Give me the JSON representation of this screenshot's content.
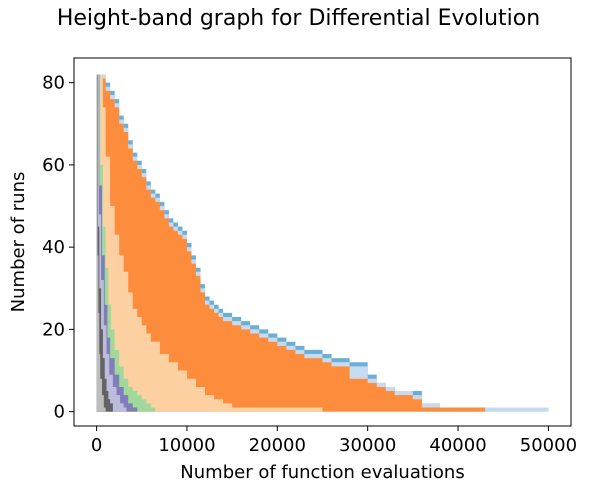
{
  "chart_data": {
    "type": "area",
    "title": "Height-band graph for Differential Evolution",
    "xlabel": "Number of function evaluations",
    "ylabel": "Number of runs",
    "xlim": [
      -2500,
      52500
    ],
    "ylim": [
      -3.5,
      86
    ],
    "xticks": [
      0,
      10000,
      20000,
      30000,
      40000,
      50000
    ],
    "yticks": [
      0,
      20,
      40,
      60,
      80
    ],
    "grid": false,
    "legend": "none",
    "total_runs": 82,
    "bands": [
      {
        "color": "#6baed6",
        "points": [
          [
            0,
            82
          ],
          [
            700,
            82
          ],
          [
            1000,
            80
          ],
          [
            1500,
            78
          ],
          [
            2000,
            76
          ],
          [
            2500,
            72
          ],
          [
            3000,
            70
          ],
          [
            3500,
            66
          ],
          [
            4000,
            63
          ],
          [
            4500,
            61
          ],
          [
            5000,
            59
          ],
          [
            5500,
            56
          ],
          [
            6000,
            54
          ],
          [
            6500,
            53
          ],
          [
            7000,
            51
          ],
          [
            7500,
            49
          ],
          [
            8000,
            47
          ],
          [
            8500,
            46
          ],
          [
            9000,
            45
          ],
          [
            9500,
            44
          ],
          [
            10000,
            41
          ],
          [
            10500,
            38
          ],
          [
            11000,
            35
          ],
          [
            11500,
            31
          ],
          [
            12000,
            28
          ],
          [
            12500,
            27
          ],
          [
            13000,
            26
          ],
          [
            13500,
            25
          ],
          [
            14000,
            24
          ],
          [
            15000,
            23
          ],
          [
            16000,
            22
          ],
          [
            17000,
            21
          ],
          [
            18000,
            20
          ],
          [
            19000,
            19
          ],
          [
            20000,
            18
          ],
          [
            21000,
            17
          ],
          [
            22000,
            16
          ],
          [
            23000,
            15
          ],
          [
            25000,
            14
          ],
          [
            26000,
            13
          ],
          [
            28000,
            12
          ],
          [
            30000,
            9
          ],
          [
            31000,
            7
          ],
          [
            32000,
            6
          ],
          [
            33000,
            5
          ],
          [
            35000,
            5
          ],
          [
            36000,
            2
          ],
          [
            38000,
            1
          ],
          [
            43000,
            1
          ],
          [
            50000,
            0
          ]
        ]
      },
      {
        "color": "#c6dbef",
        "points": [
          [
            0,
            82
          ],
          [
            700,
            82
          ],
          [
            1000,
            79
          ],
          [
            1500,
            77
          ],
          [
            2000,
            75
          ],
          [
            2500,
            71
          ],
          [
            3000,
            69
          ],
          [
            3500,
            65
          ],
          [
            4000,
            62
          ],
          [
            4500,
            60
          ],
          [
            5000,
            58
          ],
          [
            5500,
            55
          ],
          [
            6000,
            53
          ],
          [
            6500,
            52
          ],
          [
            7000,
            50
          ],
          [
            7500,
            48
          ],
          [
            8000,
            46
          ],
          [
            8500,
            45
          ],
          [
            9000,
            44
          ],
          [
            9500,
            43
          ],
          [
            10000,
            40
          ],
          [
            10500,
            37
          ],
          [
            11000,
            34
          ],
          [
            11500,
            30
          ],
          [
            12000,
            27
          ],
          [
            12500,
            26
          ],
          [
            13000,
            25
          ],
          [
            13500,
            24
          ],
          [
            14000,
            23
          ],
          [
            15000,
            22
          ],
          [
            16000,
            21
          ],
          [
            17000,
            20
          ],
          [
            18000,
            19
          ],
          [
            19000,
            18
          ],
          [
            20000,
            17
          ],
          [
            21000,
            16
          ],
          [
            22000,
            15
          ],
          [
            23000,
            14
          ],
          [
            25000,
            13
          ],
          [
            26000,
            12
          ],
          [
            28000,
            11
          ],
          [
            30000,
            8
          ],
          [
            31000,
            7
          ],
          [
            32000,
            6
          ],
          [
            33000,
            5
          ],
          [
            35000,
            4
          ],
          [
            36000,
            2
          ],
          [
            38000,
            1
          ],
          [
            43000,
            1
          ],
          [
            50000,
            0
          ]
        ]
      },
      {
        "color": "#fd8d3c",
        "points": [
          [
            0,
            82
          ],
          [
            700,
            81
          ],
          [
            1000,
            78
          ],
          [
            1500,
            76
          ],
          [
            2000,
            74
          ],
          [
            2500,
            70
          ],
          [
            3000,
            68
          ],
          [
            3500,
            64
          ],
          [
            4000,
            61
          ],
          [
            4500,
            59
          ],
          [
            5000,
            57
          ],
          [
            5500,
            54
          ],
          [
            6000,
            52
          ],
          [
            6500,
            51
          ],
          [
            7000,
            49
          ],
          [
            7500,
            47
          ],
          [
            8000,
            45
          ],
          [
            8500,
            44
          ],
          [
            9000,
            43
          ],
          [
            9500,
            42
          ],
          [
            10000,
            39
          ],
          [
            10500,
            36
          ],
          [
            11000,
            33
          ],
          [
            11500,
            29
          ],
          [
            12000,
            26
          ],
          [
            12500,
            25
          ],
          [
            13000,
            24
          ],
          [
            13500,
            23
          ],
          [
            14000,
            22
          ],
          [
            15000,
            21
          ],
          [
            16000,
            20
          ],
          [
            17000,
            19
          ],
          [
            18000,
            18
          ],
          [
            19000,
            17
          ],
          [
            20000,
            16
          ],
          [
            21000,
            15
          ],
          [
            22000,
            14
          ],
          [
            23000,
            13
          ],
          [
            25000,
            12
          ],
          [
            26000,
            11
          ],
          [
            28000,
            8
          ],
          [
            30000,
            7
          ],
          [
            31000,
            6
          ],
          [
            32000,
            5
          ],
          [
            33000,
            4
          ],
          [
            35000,
            3
          ],
          [
            36000,
            1
          ],
          [
            38000,
            1
          ],
          [
            43000,
            0
          ],
          [
            50000,
            0
          ]
        ]
      },
      {
        "color": "#fdd0a2",
        "points": [
          [
            0,
            82
          ],
          [
            700,
            74
          ],
          [
            1000,
            62
          ],
          [
            1500,
            50
          ],
          [
            2000,
            43
          ],
          [
            2500,
            38
          ],
          [
            3000,
            34
          ],
          [
            3500,
            29
          ],
          [
            4000,
            25
          ],
          [
            4500,
            23
          ],
          [
            5000,
            21
          ],
          [
            5500,
            19
          ],
          [
            6000,
            17
          ],
          [
            7000,
            14
          ],
          [
            8000,
            12
          ],
          [
            9000,
            10
          ],
          [
            10000,
            8
          ],
          [
            11000,
            6
          ],
          [
            12000,
            4
          ],
          [
            13000,
            3
          ],
          [
            14000,
            2
          ],
          [
            15000,
            1
          ],
          [
            25000,
            0
          ],
          [
            50000,
            0
          ]
        ]
      },
      {
        "color": "#a1d99b",
        "points": [
          [
            0,
            82
          ],
          [
            400,
            60
          ],
          [
            700,
            45
          ],
          [
            1000,
            35
          ],
          [
            1300,
            26
          ],
          [
            1600,
            20
          ],
          [
            2000,
            15
          ],
          [
            2500,
            11
          ],
          [
            3000,
            8
          ],
          [
            3500,
            6
          ],
          [
            4000,
            5
          ],
          [
            4500,
            4
          ],
          [
            5000,
            3
          ],
          [
            5500,
            2
          ],
          [
            6000,
            1
          ],
          [
            6500,
            0
          ],
          [
            50000,
            0
          ]
        ]
      },
      {
        "color": "#807dba",
        "points": [
          [
            0,
            82
          ],
          [
            300,
            55
          ],
          [
            600,
            38
          ],
          [
            900,
            26
          ],
          [
            1200,
            18
          ],
          [
            1500,
            13
          ],
          [
            2000,
            9
          ],
          [
            2500,
            6
          ],
          [
            3000,
            4
          ],
          [
            3500,
            2
          ],
          [
            4000,
            1
          ],
          [
            4500,
            0
          ],
          [
            50000,
            0
          ]
        ]
      },
      {
        "color": "#bcbddc",
        "points": [
          [
            0,
            82
          ],
          [
            250,
            48
          ],
          [
            500,
            32
          ],
          [
            800,
            21
          ],
          [
            1100,
            14
          ],
          [
            1400,
            9
          ],
          [
            1800,
            6
          ],
          [
            2200,
            4
          ],
          [
            2600,
            2
          ],
          [
            3000,
            1
          ],
          [
            3300,
            0
          ],
          [
            50000,
            0
          ]
        ]
      },
      {
        "color": "#636363",
        "points": [
          [
            0,
            82
          ],
          [
            150,
            45
          ],
          [
            300,
            30
          ],
          [
            500,
            20
          ],
          [
            700,
            13
          ],
          [
            900,
            8
          ],
          [
            1100,
            5
          ],
          [
            1300,
            3
          ],
          [
            1500,
            2
          ],
          [
            1800,
            0
          ],
          [
            50000,
            0
          ]
        ]
      },
      {
        "color": "#bdbdbd",
        "points": [
          [
            0,
            82
          ],
          [
            100,
            38
          ],
          [
            200,
            24
          ],
          [
            300,
            14
          ],
          [
            400,
            8
          ],
          [
            600,
            4
          ],
          [
            800,
            1
          ],
          [
            1000,
            0
          ],
          [
            50000,
            0
          ]
        ]
      }
    ]
  }
}
